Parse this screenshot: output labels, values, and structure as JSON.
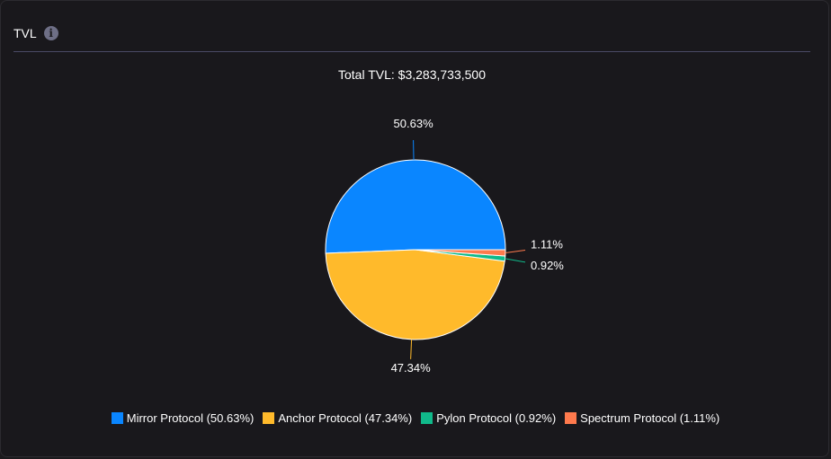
{
  "card": {
    "title": "TVL",
    "info_icon": "info-icon"
  },
  "chart_data": {
    "type": "pie",
    "title": "Total TVL: $3,283,733,500",
    "slices": [
      {
        "name": "Mirror Protocol",
        "value": 50.63,
        "label": "50.63%",
        "legend": "Mirror Protocol (50.63%)",
        "color": "#0a86ff"
      },
      {
        "name": "Anchor Protocol",
        "value": 47.34,
        "label": "47.34%",
        "legend": "Anchor Protocol (47.34%)",
        "color": "#ffba2b"
      },
      {
        "name": "Pylon Protocol",
        "value": 0.92,
        "label": "0.92%",
        "legend": "Pylon Protocol (0.92%)",
        "color": "#10b98a"
      },
      {
        "name": "Spectrum Protocol",
        "value": 1.11,
        "label": "1.11%",
        "legend": "Spectrum Protocol (1.11%)",
        "color": "#ff7a4d"
      }
    ],
    "legend_position": "bottom"
  }
}
